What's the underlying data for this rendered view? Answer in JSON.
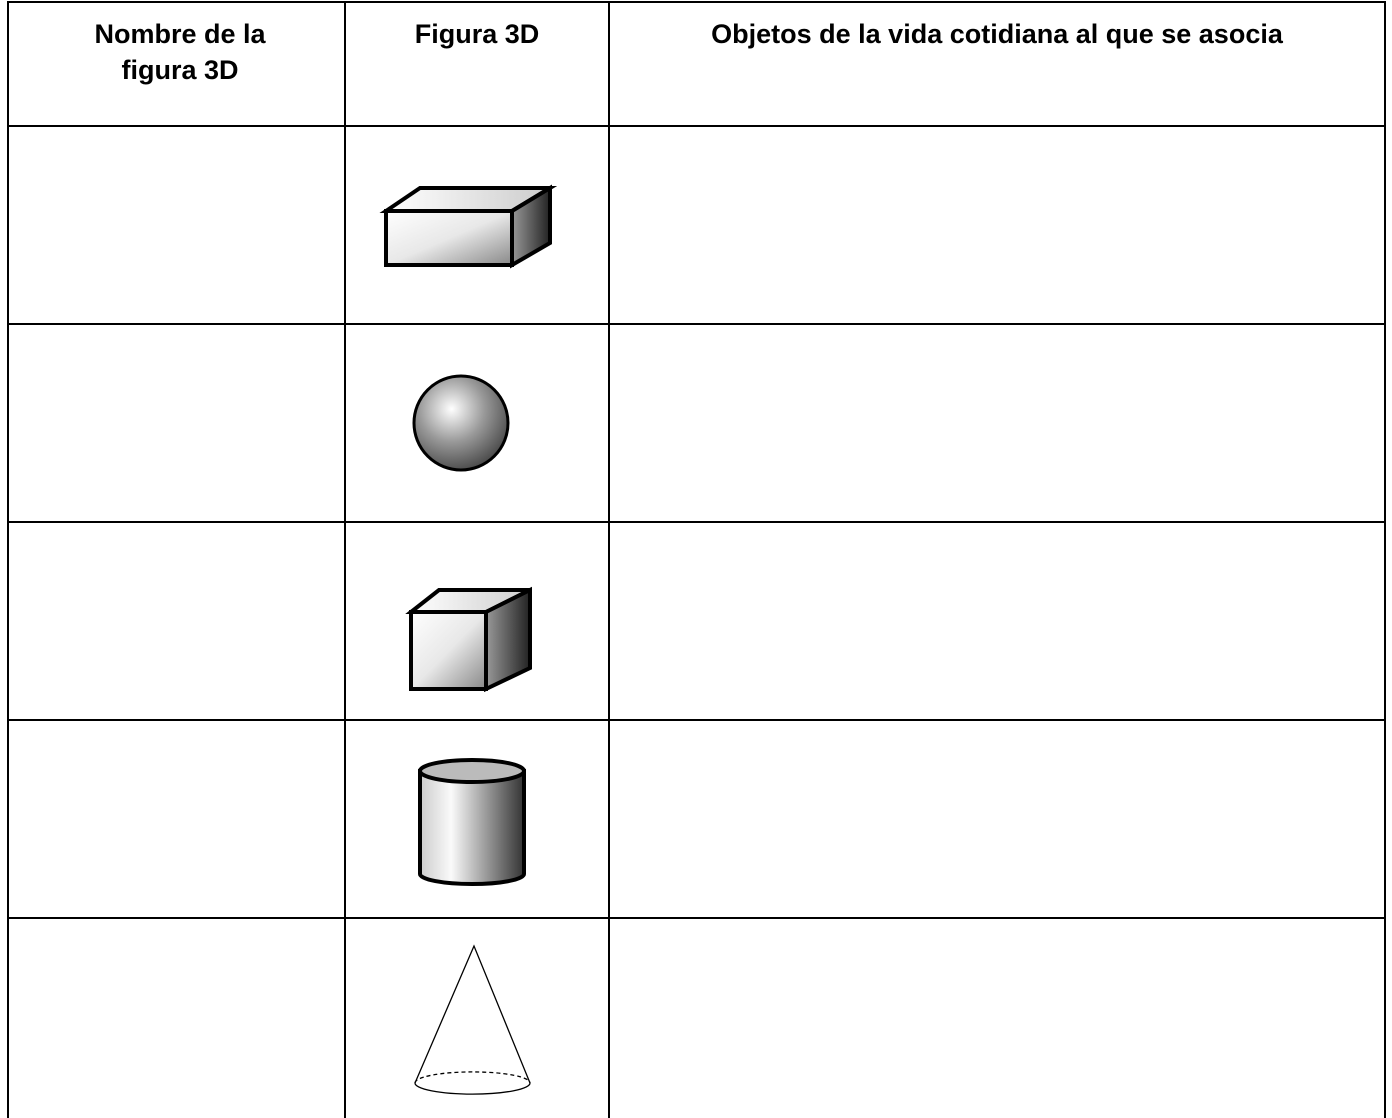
{
  "table": {
    "header": [
      "Nombre de la figura 3D",
      "Figura 3D",
      "Objetos de la vida cotidiana al que se asocia"
    ]
  }
}
